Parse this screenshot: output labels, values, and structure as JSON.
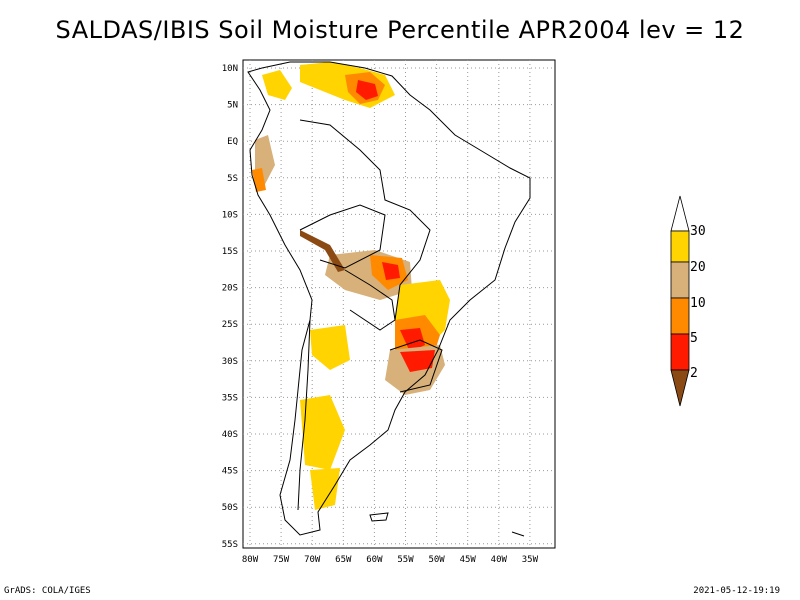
{
  "title": "SALDAS/IBIS Soil Moisture Percentile APR2004 lev = 12",
  "map": {
    "region": "South America",
    "lon_labels": [
      "80W",
      "75W",
      "70W",
      "65W",
      "60W",
      "55W",
      "50W",
      "45W",
      "40W",
      "35W"
    ],
    "lat_labels": [
      "10N",
      "5N",
      "EQ",
      "5S",
      "10S",
      "15S",
      "20S",
      "25S",
      "30S",
      "35S",
      "40S",
      "45S",
      "50S",
      "55S"
    ]
  },
  "legend": {
    "labels": [
      "30",
      "20",
      "10",
      "5",
      "2"
    ],
    "colors": [
      "#ffd400",
      "#d8b07a",
      "#ff8a00",
      "#ff1a00",
      "#8b4a14"
    ],
    "top_color": "#ffffff"
  },
  "footer": {
    "left": "GrADS: COLA/IGES",
    "right": "2021-05-12-19:19"
  }
}
